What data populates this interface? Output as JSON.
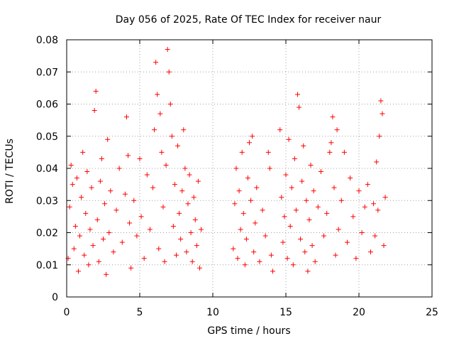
{
  "chart_data": {
    "type": "scatter",
    "title": "Day 056 of 2025, Rate Of TEC Index for receiver naur",
    "xlabel": "GPS time / hours",
    "ylabel": "ROTI / TECUs",
    "xlim": [
      0,
      25
    ],
    "ylim": [
      0,
      0.08
    ],
    "xticks": [
      0,
      5,
      10,
      15,
      20,
      25
    ],
    "xtick_labels": [
      "0",
      "5",
      "10",
      "15",
      "20",
      "25"
    ],
    "yticks": [
      0,
      0.01,
      0.02,
      0.03,
      0.04,
      0.05,
      0.06,
      0.07,
      0.08
    ],
    "ytick_labels": [
      "0",
      "0.01",
      "0.02",
      "0.03",
      "0.04",
      "0.05",
      "0.06",
      "0.07",
      "0.08"
    ],
    "grid": true,
    "marker": "plus",
    "marker_color": "#ff0000",
    "series": [
      {
        "points": [
          [
            0.1,
            0.012
          ],
          [
            0.2,
            0.028
          ],
          [
            0.3,
            0.041
          ],
          [
            0.4,
            0.035
          ],
          [
            0.5,
            0.015
          ],
          [
            0.6,
            0.022
          ],
          [
            0.7,
            0.037
          ],
          [
            0.8,
            0.008
          ],
          [
            0.9,
            0.019
          ],
          [
            1.0,
            0.031
          ],
          [
            1.1,
            0.045
          ],
          [
            1.2,
            0.013
          ],
          [
            1.3,
            0.026
          ],
          [
            1.4,
            0.039
          ],
          [
            1.5,
            0.01
          ],
          [
            1.6,
            0.021
          ],
          [
            1.7,
            0.034
          ],
          [
            1.8,
            0.016
          ],
          [
            1.9,
            0.058
          ],
          [
            2.0,
            0.064
          ],
          [
            2.1,
            0.024
          ],
          [
            2.2,
            0.011
          ],
          [
            2.3,
            0.036
          ],
          [
            2.4,
            0.043
          ],
          [
            2.5,
            0.018
          ],
          [
            2.6,
            0.029
          ],
          [
            2.7,
            0.007
          ],
          [
            2.8,
            0.049
          ],
          [
            2.9,
            0.02
          ],
          [
            3.0,
            0.033
          ],
          [
            3.2,
            0.014
          ],
          [
            3.4,
            0.027
          ],
          [
            3.6,
            0.04
          ],
          [
            3.8,
            0.017
          ],
          [
            4.0,
            0.032
          ],
          [
            4.1,
            0.056
          ],
          [
            4.2,
            0.044
          ],
          [
            4.3,
            0.023
          ],
          [
            4.4,
            0.009
          ],
          [
            4.6,
            0.03
          ],
          [
            4.8,
            0.019
          ],
          [
            5.0,
            0.043
          ],
          [
            5.1,
            0.025
          ],
          [
            5.3,
            0.012
          ],
          [
            5.5,
            0.038
          ],
          [
            5.7,
            0.021
          ],
          [
            5.9,
            0.034
          ],
          [
            6.0,
            0.052
          ],
          [
            6.1,
            0.073
          ],
          [
            6.2,
            0.063
          ],
          [
            6.3,
            0.015
          ],
          [
            6.4,
            0.057
          ],
          [
            6.5,
            0.045
          ],
          [
            6.6,
            0.028
          ],
          [
            6.7,
            0.011
          ],
          [
            6.8,
            0.041
          ],
          [
            6.9,
            0.077
          ],
          [
            7.0,
            0.07
          ],
          [
            7.1,
            0.06
          ],
          [
            7.2,
            0.05
          ],
          [
            7.3,
            0.022
          ],
          [
            7.4,
            0.035
          ],
          [
            7.5,
            0.013
          ],
          [
            7.6,
            0.047
          ],
          [
            7.7,
            0.026
          ],
          [
            7.8,
            0.018
          ],
          [
            7.9,
            0.033
          ],
          [
            8.0,
            0.052
          ],
          [
            8.1,
            0.04
          ],
          [
            8.2,
            0.014
          ],
          [
            8.3,
            0.029
          ],
          [
            8.4,
            0.038
          ],
          [
            8.5,
            0.02
          ],
          [
            8.6,
            0.011
          ],
          [
            8.7,
            0.031
          ],
          [
            8.8,
            0.024
          ],
          [
            8.9,
            0.016
          ],
          [
            9.0,
            0.036
          ],
          [
            9.1,
            0.009
          ],
          [
            9.2,
            0.021
          ],
          [
            11.4,
            0.015
          ],
          [
            11.5,
            0.029
          ],
          [
            11.6,
            0.04
          ],
          [
            11.7,
            0.012
          ],
          [
            11.8,
            0.033
          ],
          [
            11.9,
            0.021
          ],
          [
            12.0,
            0.045
          ],
          [
            12.1,
            0.026
          ],
          [
            12.2,
            0.01
          ],
          [
            12.3,
            0.018
          ],
          [
            12.4,
            0.037
          ],
          [
            12.5,
            0.048
          ],
          [
            12.6,
            0.03
          ],
          [
            12.7,
            0.05
          ],
          [
            12.8,
            0.014
          ],
          [
            12.9,
            0.023
          ],
          [
            13.0,
            0.034
          ],
          [
            13.2,
            0.011
          ],
          [
            13.4,
            0.027
          ],
          [
            13.6,
            0.019
          ],
          [
            13.8,
            0.045
          ],
          [
            13.9,
            0.04
          ],
          [
            14.0,
            0.013
          ],
          [
            14.1,
            0.008
          ],
          [
            14.6,
            0.052
          ],
          [
            14.7,
            0.031
          ],
          [
            14.8,
            0.017
          ],
          [
            14.9,
            0.025
          ],
          [
            15.0,
            0.038
          ],
          [
            15.1,
            0.012
          ],
          [
            15.2,
            0.049
          ],
          [
            15.3,
            0.022
          ],
          [
            15.4,
            0.034
          ],
          [
            15.5,
            0.01
          ],
          [
            15.6,
            0.043
          ],
          [
            15.7,
            0.027
          ],
          [
            15.8,
            0.063
          ],
          [
            15.9,
            0.059
          ],
          [
            16.0,
            0.018
          ],
          [
            16.1,
            0.036
          ],
          [
            16.2,
            0.047
          ],
          [
            16.3,
            0.014
          ],
          [
            16.4,
            0.03
          ],
          [
            16.5,
            0.008
          ],
          [
            16.6,
            0.024
          ],
          [
            16.7,
            0.041
          ],
          [
            16.8,
            0.016
          ],
          [
            16.9,
            0.033
          ],
          [
            17.0,
            0.011
          ],
          [
            17.2,
            0.028
          ],
          [
            17.4,
            0.039
          ],
          [
            17.6,
            0.019
          ],
          [
            17.8,
            0.026
          ],
          [
            18.0,
            0.045
          ],
          [
            18.1,
            0.048
          ],
          [
            18.2,
            0.056
          ],
          [
            18.3,
            0.034
          ],
          [
            18.4,
            0.013
          ],
          [
            18.5,
            0.052
          ],
          [
            18.6,
            0.021
          ],
          [
            18.8,
            0.03
          ],
          [
            19.0,
            0.045
          ],
          [
            19.2,
            0.017
          ],
          [
            19.4,
            0.037
          ],
          [
            19.6,
            0.025
          ],
          [
            19.8,
            0.012
          ],
          [
            20.0,
            0.033
          ],
          [
            20.2,
            0.02
          ],
          [
            20.4,
            0.028
          ],
          [
            20.6,
            0.035
          ],
          [
            20.8,
            0.014
          ],
          [
            21.0,
            0.029
          ],
          [
            21.1,
            0.019
          ],
          [
            21.2,
            0.042
          ],
          [
            21.3,
            0.027
          ],
          [
            21.4,
            0.05
          ],
          [
            21.5,
            0.061
          ],
          [
            21.6,
            0.057
          ],
          [
            21.7,
            0.016
          ],
          [
            21.8,
            0.031
          ]
        ]
      }
    ]
  }
}
